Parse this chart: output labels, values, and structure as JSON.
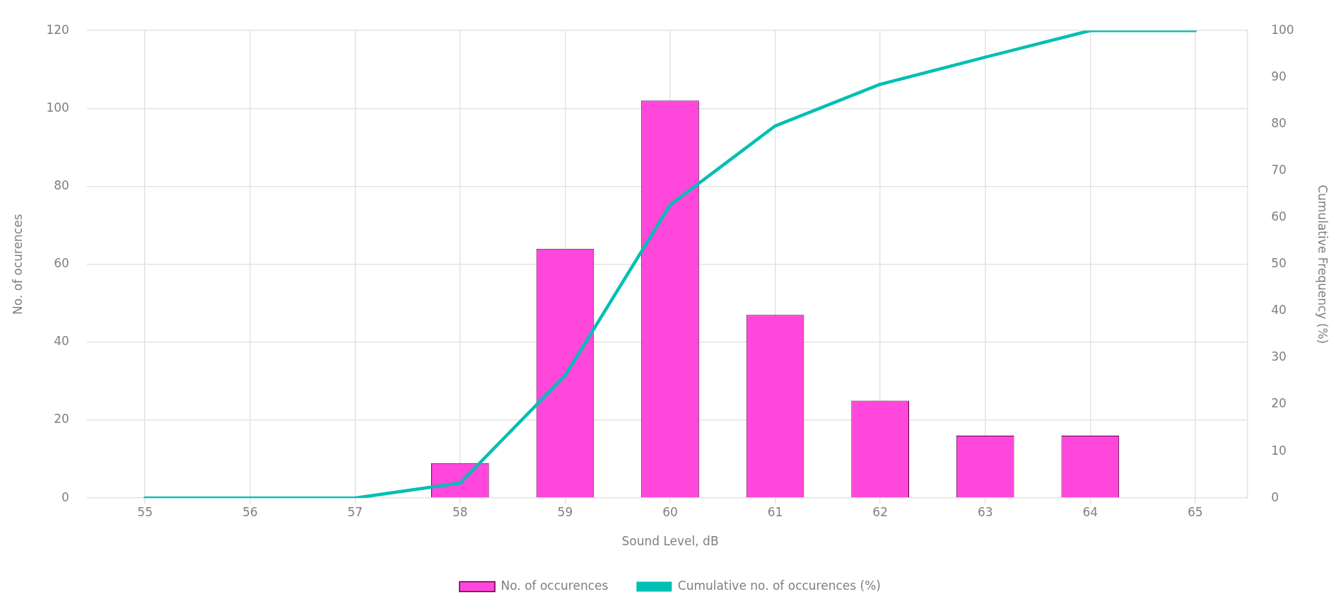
{
  "chart_data": {
    "type": "bar",
    "xlabel": "Sound Level, dB",
    "ylabel": "No. of ocurences",
    "y2label": "Cumulative Frequency (%)",
    "categories": [
      "55",
      "56",
      "57",
      "58",
      "59",
      "60",
      "61",
      "62",
      "63",
      "64",
      "65"
    ],
    "series": [
      {
        "name": "No. of occurences",
        "color": "#ff47dc",
        "values": [
          0,
          0,
          0,
          9,
          64,
          102,
          47,
          25,
          16,
          16,
          0
        ]
      },
      {
        "name": "Cumulative no. of occurences (%)",
        "type": "line",
        "axis": "y2",
        "color": "#00bfb4",
        "values": [
          0,
          0,
          0,
          3.2,
          26.2,
          62.7,
          79.6,
          88.5,
          94.3,
          100,
          100
        ]
      }
    ],
    "ylim": [
      0,
      120
    ],
    "yticks": [
      0,
      20,
      40,
      60,
      80,
      100,
      120
    ],
    "y2lim": [
      0,
      100
    ],
    "y2ticks": [
      0,
      10,
      20,
      30,
      40,
      50,
      60,
      70,
      80,
      90,
      100
    ],
    "grid": true,
    "legend": "bottom",
    "marker": "none",
    "line_style": "solid"
  }
}
